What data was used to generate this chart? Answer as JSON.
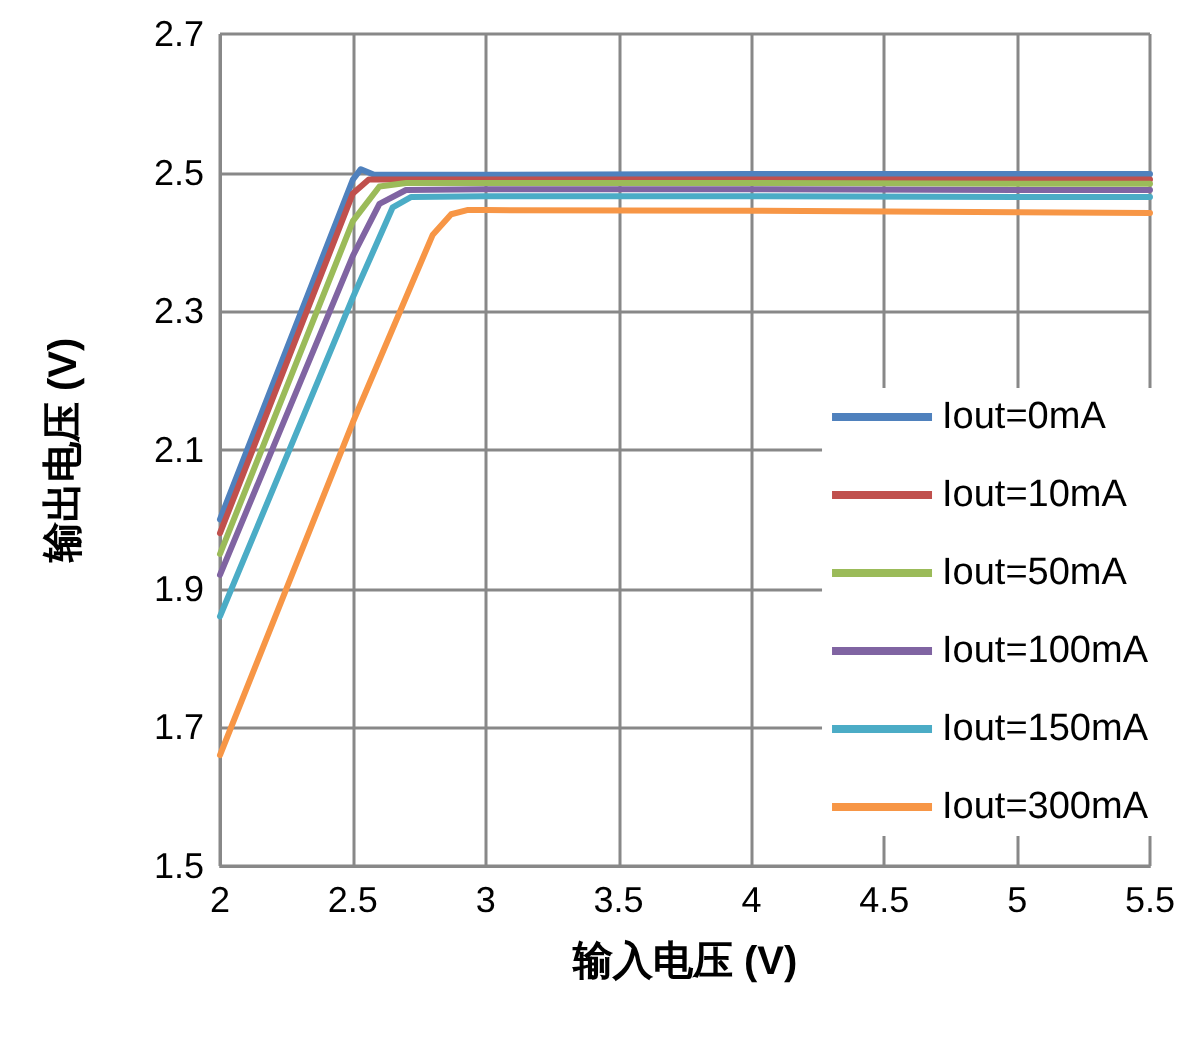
{
  "chart_data": {
    "type": "line",
    "xlabel": "输入电压 (V)",
    "ylabel": "输出电压 (V)",
    "xlim": [
      2,
      5.5
    ],
    "xticks": [
      2,
      2.5,
      3,
      3.5,
      4,
      4.5,
      5,
      5.5
    ],
    "ylim": [
      1.5,
      2.7
    ],
    "yticks": [
      1.5,
      1.7,
      1.9,
      2.1,
      2.3,
      2.5,
      2.7
    ],
    "grid": true,
    "legend": "bottom right",
    "marker": "none",
    "line_style": "solid",
    "series": [
      {
        "name": "Iout=0mA",
        "color": "#4f81bd",
        "x": [
          2,
          2.5,
          2.53,
          2.58,
          3,
          4,
          5,
          5.5
        ],
        "values": [
          2.0,
          2.49,
          2.505,
          2.497,
          2.497,
          2.498,
          2.498,
          2.498
        ]
      },
      {
        "name": "Iout=10mA",
        "color": "#c0504d",
        "x": [
          2,
          2.5,
          2.56,
          3,
          4,
          5,
          5.5
        ],
        "values": [
          1.98,
          2.47,
          2.49,
          2.49,
          2.49,
          2.49,
          2.49
        ]
      },
      {
        "name": "Iout=50mA",
        "color": "#9bbb59",
        "x": [
          2,
          2.5,
          2.6,
          2.7,
          3,
          4,
          5,
          5.5
        ],
        "values": [
          1.95,
          2.43,
          2.48,
          2.485,
          2.485,
          2.485,
          2.484,
          2.484
        ]
      },
      {
        "name": "Iout=100mA",
        "color": "#8064a2",
        "x": [
          2,
          2.5,
          2.6,
          2.7,
          3,
          4,
          5,
          5.5
        ],
        "values": [
          1.92,
          2.38,
          2.455,
          2.475,
          2.476,
          2.476,
          2.475,
          2.475
        ]
      },
      {
        "name": "Iout=150mA",
        "color": "#4bacc6",
        "x": [
          2,
          2.5,
          2.65,
          2.72,
          3,
          4,
          5,
          5.5
        ],
        "values": [
          1.86,
          2.32,
          2.45,
          2.465,
          2.466,
          2.466,
          2.465,
          2.465
        ]
      },
      {
        "name": "Iout=300mA",
        "color": "#f79646",
        "x": [
          2,
          2.5,
          2.8,
          2.87,
          2.93,
          3,
          4,
          5,
          5.5
        ],
        "values": [
          1.66,
          2.14,
          2.41,
          2.44,
          2.446,
          2.446,
          2.445,
          2.443,
          2.442
        ]
      }
    ]
  }
}
